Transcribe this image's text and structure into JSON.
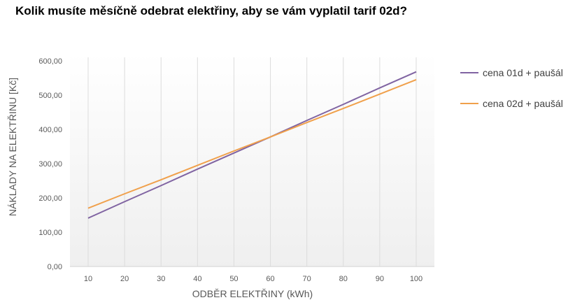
{
  "title": "Kolik musíte měsíčně odebrat elektřiny, aby se vám vyplatil tarif 02d?",
  "chart_data": {
    "type": "line",
    "title": "Kolik musíte měsíčně odebrat elektřiny, aby se vám vyplatil tarif 02d?",
    "xlabel": "ODBĚR ELEKTŘINY (kWh)",
    "ylabel": "NÁKLADY NA ELEKTŘINU [Kč]",
    "x": [
      10,
      20,
      30,
      40,
      50,
      60,
      70,
      80,
      90,
      100
    ],
    "x_tick_labels": [
      "10",
      "20",
      "30",
      "40",
      "50",
      "60",
      "70",
      "80",
      "90",
      "100"
    ],
    "ylim": [
      0,
      600
    ],
    "y_tick_values": [
      0,
      100,
      200,
      300,
      400,
      500,
      600
    ],
    "y_tick_labels": [
      "0,00",
      "100,00",
      "200,00",
      "300,00",
      "400,00",
      "500,00",
      "600,00"
    ],
    "grid": "vertical",
    "legend_position": "right",
    "series": [
      {
        "name": "cena 01d + paušál",
        "color": "#8064a2",
        "values": [
          141,
          189,
          236,
          284,
          331,
          378,
          426,
          473,
          521,
          568
        ]
      },
      {
        "name": "cena 02d + paušál",
        "color": "#f0a04b",
        "values": [
          170,
          212,
          253,
          295,
          337,
          378,
          420,
          461,
          503,
          545
        ]
      }
    ]
  }
}
